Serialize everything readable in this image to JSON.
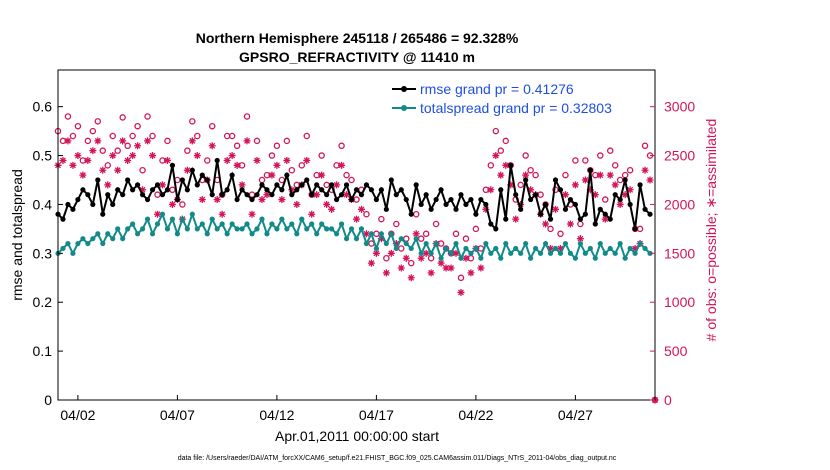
{
  "chart_data": {
    "type": "line",
    "title": "Northern Hemisphere 245118 / 265486 = 92.328%",
    "subtitle": "GPSRO_REFRACTIVITY @ 11410 m",
    "xlabel": "Apr.01,2011 00:00:00 start",
    "ylabel": "rmse and totalspread",
    "ylabel_right": "# of obs: o=possible; ∗=assimilated",
    "footnote": "data file: /Users/raeder/DAI/ATM_forcXX/CAM6_setup/f.e21.FHIST_BGC.f09_025.CAM6assim.011/Diags_NTrS_2011-04/obs_diag_output.nc",
    "x_tick_labels": [
      "04/02",
      "04/07",
      "04/12",
      "04/17",
      "04/22",
      "04/27"
    ],
    "x_tick_days": [
      2,
      7,
      12,
      17,
      22,
      27
    ],
    "xlim_days": [
      1,
      31
    ],
    "ylim": [
      0,
      0.675
    ],
    "y_ticks": [
      0,
      0.1,
      0.2,
      0.3,
      0.4,
      0.5,
      0.6
    ],
    "y_tick_labels": [
      "0",
      "0.1",
      "0.2",
      "0.3",
      "0.4",
      "0.5",
      "0.6"
    ],
    "ylim_right": [
      0,
      3375
    ],
    "y_ticks_right": [
      0,
      500,
      1000,
      1500,
      2000,
      2500,
      3000
    ],
    "y_tick_labels_right": [
      "0",
      "500",
      "1000",
      "1500",
      "2000",
      "2500",
      "3000"
    ],
    "grid": false,
    "legend_position": "top-right",
    "colors": {
      "rmse": "#000000",
      "spread": "#138a8a",
      "obs": "#d4145a",
      "legend_text": "#1f4fe0"
    },
    "series": [
      {
        "name": "rmse grand pr = 0.41276",
        "axis": "left",
        "marker": "filled-circle",
        "x_days": [
          1.0,
          1.25,
          1.5,
          1.75,
          2.0,
          2.25,
          2.5,
          2.75,
          3.0,
          3.25,
          3.5,
          3.75,
          4.0,
          4.25,
          4.5,
          4.75,
          5.0,
          5.25,
          5.5,
          5.75,
          6.0,
          6.25,
          6.5,
          6.75,
          7.0,
          7.25,
          7.5,
          7.75,
          8.0,
          8.25,
          8.5,
          8.75,
          9.0,
          9.25,
          9.5,
          9.75,
          10.0,
          10.25,
          10.5,
          10.75,
          11.0,
          11.25,
          11.5,
          11.75,
          12.0,
          12.25,
          12.5,
          12.75,
          13.0,
          13.25,
          13.5,
          13.75,
          14.0,
          14.25,
          14.5,
          14.75,
          15.0,
          15.25,
          15.5,
          15.75,
          16.0,
          16.25,
          16.5,
          16.75,
          17.0,
          17.25,
          17.5,
          17.75,
          18.0,
          18.25,
          18.5,
          18.75,
          19.0,
          19.25,
          19.5,
          19.75,
          20.0,
          20.25,
          20.5,
          20.75,
          21.0,
          21.25,
          21.5,
          21.75,
          22.0,
          22.25,
          22.5,
          22.75,
          23.0,
          23.25,
          23.5,
          23.75,
          24.0,
          24.25,
          24.5,
          24.75,
          25.0,
          25.25,
          25.5,
          25.75,
          26.0,
          26.25,
          26.5,
          26.75,
          27.0,
          27.25,
          27.5,
          27.75,
          28.0,
          28.25,
          28.5,
          28.75,
          29.0,
          29.25,
          29.5,
          29.75,
          30.0,
          30.25,
          30.5,
          30.75
        ],
        "values": [
          0.38,
          0.37,
          0.4,
          0.39,
          0.41,
          0.43,
          0.42,
          0.4,
          0.45,
          0.38,
          0.42,
          0.4,
          0.43,
          0.42,
          0.45,
          0.43,
          0.44,
          0.42,
          0.41,
          0.43,
          0.44,
          0.42,
          0.43,
          0.48,
          0.41,
          0.45,
          0.43,
          0.47,
          0.44,
          0.46,
          0.45,
          0.42,
          0.49,
          0.42,
          0.43,
          0.46,
          0.41,
          0.43,
          0.42,
          0.41,
          0.42,
          0.44,
          0.43,
          0.42,
          0.44,
          0.43,
          0.46,
          0.42,
          0.43,
          0.44,
          0.45,
          0.42,
          0.44,
          0.43,
          0.42,
          0.44,
          0.41,
          0.42,
          0.44,
          0.41,
          0.43,
          0.42,
          0.44,
          0.43,
          0.41,
          0.43,
          0.39,
          0.45,
          0.42,
          0.43,
          0.41,
          0.38,
          0.44,
          0.4,
          0.42,
          0.39,
          0.41,
          0.43,
          0.4,
          0.41,
          0.39,
          0.42,
          0.4,
          0.41,
          0.38,
          0.41,
          0.4,
          0.36,
          0.35,
          0.43,
          0.37,
          0.48,
          0.42,
          0.39,
          0.45,
          0.41,
          0.42,
          0.38,
          0.4,
          0.37,
          0.45,
          0.43,
          0.39,
          0.41,
          0.4,
          0.37,
          0.38,
          0.47,
          0.36,
          0.39,
          0.38,
          0.37,
          0.42,
          0.41,
          0.45,
          0.4,
          0.35,
          0.44,
          0.39,
          0.38
        ]
      },
      {
        "name": "totalspread grand pr = 0.32803",
        "axis": "left",
        "marker": "filled-circle",
        "x_days": [
          1.0,
          1.25,
          1.5,
          1.75,
          2.0,
          2.25,
          2.5,
          2.75,
          3.0,
          3.25,
          3.5,
          3.75,
          4.0,
          4.25,
          4.5,
          4.75,
          5.0,
          5.25,
          5.5,
          5.75,
          6.0,
          6.25,
          6.5,
          6.75,
          7.0,
          7.25,
          7.5,
          7.75,
          8.0,
          8.25,
          8.5,
          8.75,
          9.0,
          9.25,
          9.5,
          9.75,
          10.0,
          10.25,
          10.5,
          10.75,
          11.0,
          11.25,
          11.5,
          11.75,
          12.0,
          12.25,
          12.5,
          12.75,
          13.0,
          13.25,
          13.5,
          13.75,
          14.0,
          14.25,
          14.5,
          14.75,
          15.0,
          15.25,
          15.5,
          15.75,
          16.0,
          16.25,
          16.5,
          16.75,
          17.0,
          17.25,
          17.5,
          17.75,
          18.0,
          18.25,
          18.5,
          18.75,
          19.0,
          19.25,
          19.5,
          19.75,
          20.0,
          20.25,
          20.5,
          20.75,
          21.0,
          21.25,
          21.5,
          21.75,
          22.0,
          22.25,
          22.5,
          22.75,
          23.0,
          23.25,
          23.5,
          23.75,
          24.0,
          24.25,
          24.5,
          24.75,
          25.0,
          25.25,
          25.5,
          25.75,
          26.0,
          26.25,
          26.5,
          26.75,
          27.0,
          27.25,
          27.5,
          27.75,
          28.0,
          28.25,
          28.5,
          28.75,
          29.0,
          29.25,
          29.5,
          29.75,
          30.0,
          30.25,
          30.5,
          30.75
        ],
        "values": [
          0.3,
          0.31,
          0.32,
          0.3,
          0.32,
          0.33,
          0.32,
          0.33,
          0.34,
          0.32,
          0.34,
          0.33,
          0.35,
          0.33,
          0.35,
          0.36,
          0.34,
          0.35,
          0.37,
          0.34,
          0.36,
          0.38,
          0.35,
          0.37,
          0.34,
          0.37,
          0.35,
          0.38,
          0.35,
          0.36,
          0.34,
          0.37,
          0.35,
          0.36,
          0.34,
          0.36,
          0.35,
          0.35,
          0.36,
          0.34,
          0.35,
          0.37,
          0.34,
          0.36,
          0.35,
          0.37,
          0.35,
          0.36,
          0.34,
          0.37,
          0.35,
          0.36,
          0.34,
          0.36,
          0.35,
          0.35,
          0.34,
          0.36,
          0.33,
          0.35,
          0.33,
          0.35,
          0.32,
          0.34,
          0.31,
          0.34,
          0.32,
          0.34,
          0.31,
          0.33,
          0.32,
          0.31,
          0.33,
          0.3,
          0.32,
          0.3,
          0.32,
          0.29,
          0.31,
          0.3,
          0.32,
          0.29,
          0.31,
          0.3,
          0.31,
          0.29,
          0.32,
          0.3,
          0.31,
          0.29,
          0.32,
          0.3,
          0.31,
          0.3,
          0.32,
          0.29,
          0.31,
          0.3,
          0.32,
          0.3,
          0.31,
          0.3,
          0.32,
          0.3,
          0.29,
          0.32,
          0.3,
          0.31,
          0.29,
          0.32,
          0.3,
          0.31,
          0.3,
          0.32,
          0.29,
          0.31,
          0.3,
          0.32,
          0.31,
          0.3
        ]
      },
      {
        "name": "possible",
        "axis": "right",
        "marker": "open-circle",
        "x_days": [
          1.0,
          1.25,
          1.5,
          1.75,
          2.0,
          2.25,
          2.5,
          2.75,
          3.0,
          3.25,
          3.5,
          3.75,
          4.0,
          4.25,
          4.5,
          4.75,
          5.0,
          5.25,
          5.5,
          5.75,
          6.0,
          6.25,
          6.5,
          6.75,
          7.0,
          7.25,
          7.5,
          7.75,
          8.0,
          8.25,
          8.5,
          8.75,
          9.0,
          9.25,
          9.5,
          9.75,
          10.0,
          10.25,
          10.5,
          10.75,
          11.0,
          11.25,
          11.5,
          11.75,
          12.0,
          12.25,
          12.5,
          12.75,
          13.0,
          13.25,
          13.5,
          13.75,
          14.0,
          14.25,
          14.5,
          14.75,
          15.0,
          15.25,
          15.5,
          15.75,
          16.0,
          16.25,
          16.5,
          16.75,
          17.0,
          17.25,
          17.5,
          17.75,
          18.0,
          18.25,
          18.5,
          18.75,
          19.0,
          19.25,
          19.5,
          19.75,
          20.0,
          20.25,
          20.5,
          20.75,
          21.0,
          21.25,
          21.5,
          21.75,
          22.0,
          22.25,
          22.5,
          22.75,
          23.0,
          23.25,
          23.5,
          23.75,
          24.0,
          24.25,
          24.5,
          24.75,
          25.0,
          25.25,
          25.5,
          25.75,
          26.0,
          26.25,
          26.5,
          26.75,
          27.0,
          27.25,
          27.5,
          27.75,
          28.0,
          28.25,
          28.5,
          28.75,
          29.0,
          29.25,
          29.5,
          29.75,
          30.0,
          30.25,
          30.5,
          30.75,
          31.0
        ],
        "values": [
          2750,
          2650,
          2900,
          2700,
          2800,
          2450,
          2650,
          2750,
          2850,
          2550,
          2400,
          2700,
          2550,
          2890,
          2600,
          2700,
          2800,
          2350,
          2900,
          2700,
          2100,
          2450,
          2650,
          2150,
          2250,
          2000,
          2550,
          2850,
          2700,
          2250,
          2450,
          2800,
          2250,
          2100,
          2700,
          2700,
          2600,
          2400,
          2900,
          2100,
          2650,
          2250,
          2300,
          2500,
          2600,
          2250,
          2650,
          2350,
          2200,
          2400,
          2700,
          2100,
          2300,
          2500,
          2200,
          2150,
          2400,
          2600,
          2300,
          2250,
          2050,
          2150,
          1900,
          1600,
          1700,
          1850,
          1450,
          1700,
          1800,
          1550,
          1650,
          1400,
          1900,
          1650,
          1700,
          1450,
          1800,
          1600,
          1550,
          1500,
          1700,
          1250,
          1650,
          1450,
          1750,
          1550,
          2150,
          2400,
          2750,
          2550,
          2650,
          2400,
          2050,
          2200,
          2500,
          2350,
          2300,
          2100,
          2000,
          1750,
          2150,
          1700,
          2300,
          2000,
          2450,
          1800,
          2450,
          2350,
          2300,
          2500,
          2050,
          2550,
          2400,
          2250,
          2300,
          2350,
          1750,
          1750,
          2600,
          2500,
          0
        ]
      },
      {
        "name": "assimilated",
        "axis": "right",
        "marker": "star",
        "x_days": [
          1.0,
          1.25,
          1.5,
          1.75,
          2.0,
          2.25,
          2.5,
          2.75,
          3.0,
          3.25,
          3.5,
          3.75,
          4.0,
          4.25,
          4.5,
          4.75,
          5.0,
          5.25,
          5.5,
          5.75,
          6.0,
          6.25,
          6.5,
          6.75,
          7.0,
          7.25,
          7.5,
          7.75,
          8.0,
          8.25,
          8.5,
          8.75,
          9.0,
          9.25,
          9.5,
          9.75,
          10.0,
          10.25,
          10.5,
          10.75,
          11.0,
          11.25,
          11.5,
          11.75,
          12.0,
          12.25,
          12.5,
          12.75,
          13.0,
          13.25,
          13.5,
          13.75,
          14.0,
          14.25,
          14.5,
          14.75,
          15.0,
          15.25,
          15.5,
          15.75,
          16.0,
          16.25,
          16.5,
          16.75,
          17.0,
          17.25,
          17.5,
          17.75,
          18.0,
          18.25,
          18.5,
          18.75,
          19.0,
          19.25,
          19.5,
          19.75,
          20.0,
          20.25,
          20.5,
          20.75,
          21.0,
          21.25,
          21.5,
          21.75,
          22.0,
          22.25,
          22.5,
          22.75,
          23.0,
          23.25,
          23.5,
          23.75,
          24.0,
          24.25,
          24.5,
          24.75,
          25.0,
          25.25,
          25.5,
          25.75,
          26.0,
          26.25,
          26.5,
          26.75,
          27.0,
          27.25,
          27.5,
          27.75,
          28.0,
          28.25,
          28.5,
          28.75,
          29.0,
          29.25,
          29.5,
          29.75,
          30.0,
          30.25,
          30.5,
          30.75,
          31.0
        ],
        "values": [
          2400,
          2450,
          2650,
          2400,
          2500,
          2300,
          2450,
          2550,
          2650,
          2350,
          2200,
          2500,
          2350,
          2650,
          2450,
          2500,
          2600,
          2150,
          2650,
          2500,
          1900,
          2200,
          2450,
          2000,
          2050,
          1850,
          2350,
          2650,
          2500,
          2050,
          2250,
          2600,
          2050,
          1900,
          2450,
          2500,
          2400,
          2200,
          2650,
          1900,
          2450,
          2050,
          2100,
          2300,
          2400,
          2050,
          2450,
          2150,
          2000,
          2200,
          2450,
          1900,
          2100,
          2300,
          2000,
          1950,
          2200,
          2400,
          2100,
          2050,
          1850,
          1950,
          1700,
          1400,
          1500,
          1650,
          1300,
          1500,
          1600,
          1350,
          1450,
          1250,
          1700,
          1450,
          1500,
          1300,
          1600,
          1400,
          1350,
          1350,
          1500,
          1100,
          1450,
          1300,
          1550,
          1350,
          1950,
          2150,
          2500,
          2300,
          2400,
          2200,
          1850,
          2000,
          2300,
          2150,
          2100,
          1900,
          1800,
          1550,
          1950,
          1550,
          2100,
          1800,
          2200,
          1650,
          2250,
          2150,
          2100,
          2300,
          1850,
          2300,
          2200,
          2000,
          2100,
          2150,
          1550,
          1600,
          2350,
          2250,
          0
        ]
      }
    ]
  }
}
